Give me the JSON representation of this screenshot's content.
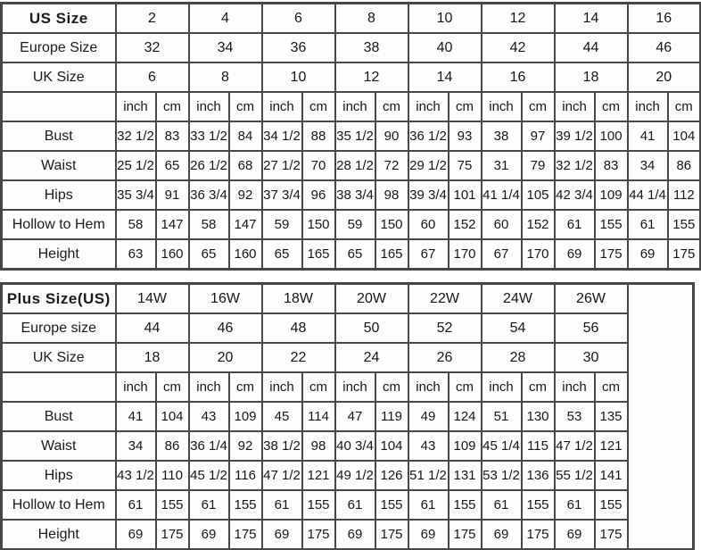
{
  "page": {
    "background_color": "#ffffff",
    "table_background_color": "#fdfdfd",
    "border_color": "#474747",
    "text_color": "#161616"
  },
  "chart_data": [
    {
      "type": "table",
      "title": "US Size chart",
      "header_rows": [
        {
          "label": "US Size",
          "bold": true,
          "sizes": [
            "2",
            "4",
            "6",
            "8",
            "10",
            "12",
            "14",
            "16"
          ]
        },
        {
          "label": "Europe Size",
          "bold": false,
          "sizes": [
            "32",
            "34",
            "36",
            "38",
            "40",
            "42",
            "44",
            "46"
          ]
        },
        {
          "label": "UK Size",
          "bold": false,
          "sizes": [
            "6",
            "8",
            "10",
            "12",
            "14",
            "16",
            "18",
            "20"
          ]
        }
      ],
      "unit_row": {
        "label": "",
        "units": [
          "inch",
          "cm"
        ]
      },
      "rows": [
        {
          "label": "Bust",
          "cells": [
            "32 1/2",
            "83",
            "33 1/2",
            "84",
            "34 1/2",
            "88",
            "35 1/2",
            "90",
            "36 1/2",
            "93",
            "38",
            "97",
            "39 1/2",
            "100",
            "41",
            "104"
          ]
        },
        {
          "label": "Waist",
          "cells": [
            "25 1/2",
            "65",
            "26 1/2",
            "68",
            "27 1/2",
            "70",
            "28 1/2",
            "72",
            "29 1/2",
            "75",
            "31",
            "79",
            "32 1/2",
            "83",
            "34",
            "86"
          ]
        },
        {
          "label": "Hips",
          "cells": [
            "35 3/4",
            "91",
            "36 3/4",
            "92",
            "37 3/4",
            "96",
            "38 3/4",
            "98",
            "39 3/4",
            "101",
            "41 1/4",
            "105",
            "42 3/4",
            "109",
            "44 1/4",
            "112"
          ]
        },
        {
          "label": "Hollow to Hem",
          "cells": [
            "58",
            "147",
            "58",
            "147",
            "59",
            "150",
            "59",
            "150",
            "60",
            "152",
            "60",
            "152",
            "61",
            "155",
            "61",
            "155"
          ]
        },
        {
          "label": "Height",
          "cells": [
            "63",
            "160",
            "65",
            "160",
            "65",
            "165",
            "65",
            "165",
            "67",
            "170",
            "67",
            "170",
            "69",
            "175",
            "69",
            "175"
          ]
        }
      ],
      "has_trailing_empty_column": false
    },
    {
      "type": "table",
      "title": "Plus Size (US) chart",
      "header_rows": [
        {
          "label": "Plus Size(US)",
          "bold": true,
          "sizes": [
            "14W",
            "16W",
            "18W",
            "20W",
            "22W",
            "24W",
            "26W"
          ]
        },
        {
          "label": "Europe size",
          "bold": false,
          "sizes": [
            "44",
            "46",
            "48",
            "50",
            "52",
            "54",
            "56"
          ]
        },
        {
          "label": "UK Size",
          "bold": false,
          "sizes": [
            "18",
            "20",
            "22",
            "24",
            "26",
            "28",
            "30"
          ]
        }
      ],
      "unit_row": {
        "label": "",
        "units": [
          "inch",
          "cm"
        ]
      },
      "rows": [
        {
          "label": "Bust",
          "cells": [
            "41",
            "104",
            "43",
            "109",
            "45",
            "114",
            "47",
            "119",
            "49",
            "124",
            "51",
            "130",
            "53",
            "135"
          ]
        },
        {
          "label": "Waist",
          "cells": [
            "34",
            "86",
            "36 1/4",
            "92",
            "38 1/2",
            "98",
            "40 3/4",
            "104",
            "43",
            "109",
            "45 1/4",
            "115",
            "47 1/2",
            "121"
          ]
        },
        {
          "label": "Hips",
          "cells": [
            "43 1/2",
            "110",
            "45 1/2",
            "116",
            "47 1/2",
            "121",
            "49 1/2",
            "126",
            "51 1/2",
            "131",
            "53 1/2",
            "136",
            "55 1/2",
            "141"
          ]
        },
        {
          "label": "Hollow to Hem",
          "cells": [
            "61",
            "155",
            "61",
            "155",
            "61",
            "155",
            "61",
            "155",
            "61",
            "155",
            "61",
            "155",
            "61",
            "155"
          ]
        },
        {
          "label": "Height",
          "cells": [
            "69",
            "175",
            "69",
            "175",
            "69",
            "175",
            "69",
            "175",
            "69",
            "175",
            "69",
            "175",
            "69",
            "175"
          ]
        }
      ],
      "has_trailing_empty_column": true
    }
  ]
}
